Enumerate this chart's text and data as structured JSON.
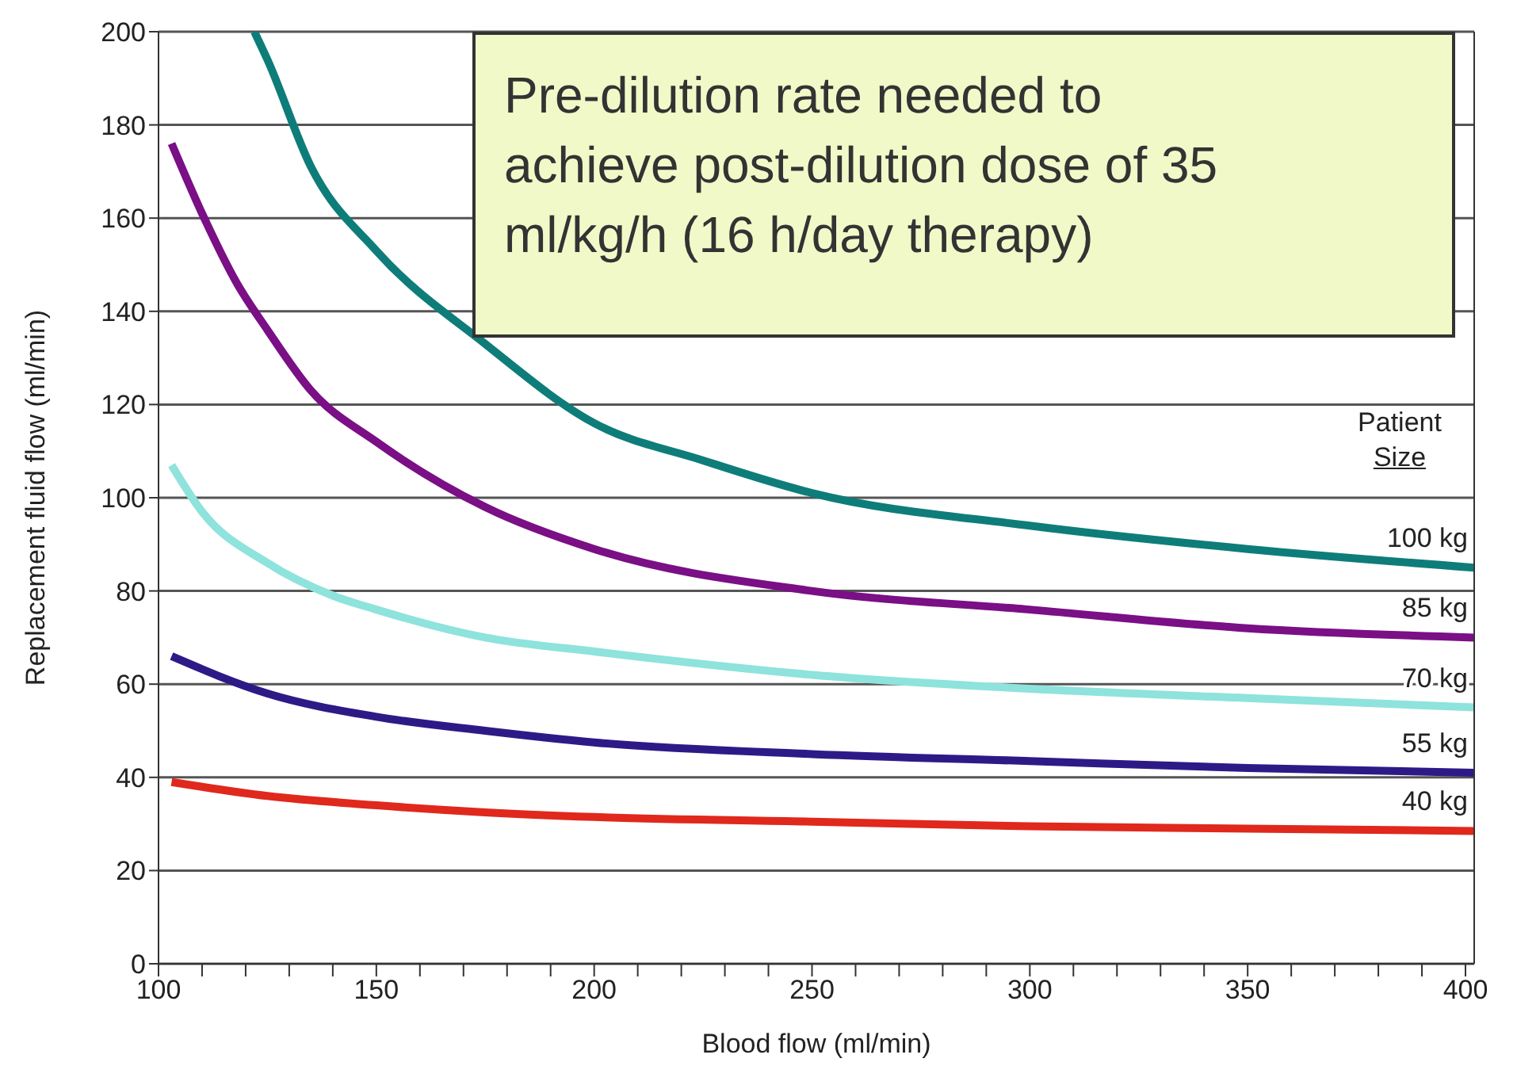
{
  "chart_data": {
    "type": "line",
    "xlabel": "Blood flow (ml/min)",
    "ylabel": "Replacement fluid flow (ml/min)",
    "legend_title": "Patient Size",
    "annotations": [
      "Pre-dilution rate needed to achieve post-dilution dose of 35 ml/kg/h (16 h/day therapy)"
    ],
    "xlim": [
      100,
      402
    ],
    "ylim": [
      0,
      200
    ],
    "xticks": [
      100,
      {
        "value": 110,
        "label": null
      },
      {
        "value": 120,
        "label": null
      },
      {
        "value": 130,
        "label": null
      },
      {
        "value": 140,
        "label": null
      },
      150,
      {
        "value": 160,
        "label": null
      },
      {
        "value": 170,
        "label": null
      },
      {
        "value": 180,
        "label": null
      },
      {
        "value": 190,
        "label": null
      },
      200,
      {
        "value": 210,
        "label": null
      },
      {
        "value": 220,
        "label": null
      },
      {
        "value": 230,
        "label": null
      },
      {
        "value": 240,
        "label": null
      },
      250,
      {
        "value": 260,
        "label": null
      },
      {
        "value": 270,
        "label": null
      },
      {
        "value": 280,
        "label": null
      },
      {
        "value": 290,
        "label": null
      },
      300,
      {
        "value": 310,
        "label": null
      },
      {
        "value": 320,
        "label": null
      },
      {
        "value": 330,
        "label": null
      },
      {
        "value": 340,
        "label": null
      },
      350,
      {
        "value": 360,
        "label": null
      },
      {
        "value": 370,
        "label": null
      },
      {
        "value": 380,
        "label": null
      },
      {
        "value": 390,
        "label": null
      },
      400
    ],
    "yticks": [
      0,
      20,
      40,
      60,
      80,
      100,
      120,
      140,
      160,
      180,
      200
    ],
    "grid": "y",
    "marker": "none",
    "line_style": "solid",
    "series": [
      {
        "name": "100 kg",
        "color": "#0e7d7a",
        "x": [
          122,
          125,
          135,
          150,
          175,
          200,
          225,
          250,
          300,
          350,
          402
        ],
        "values": [
          200,
          194,
          171,
          153,
          133,
          116,
          108,
          101,
          94,
          89,
          85
        ]
      },
      {
        "name": "85 kg",
        "color": "#7a0f86",
        "x": [
          103,
          110,
          118,
          125,
          135,
          150,
          175,
          200,
          250,
          300,
          350,
          402
        ],
        "values": [
          176,
          161,
          146,
          136,
          123,
          112,
          98,
          89,
          80,
          76,
          72,
          70
        ]
      },
      {
        "name": "70 kg",
        "color": "#8ee3dc",
        "x": [
          103,
          110,
          125,
          140,
          150,
          175,
          200,
          250,
          300,
          350,
          402
        ],
        "values": [
          107,
          97,
          86,
          79,
          76,
          70,
          67,
          62,
          59,
          57,
          55
        ]
      },
      {
        "name": "55 kg",
        "color": "#2e1a87",
        "x": [
          103,
          125,
          150,
          175,
          200,
          250,
          300,
          350,
          402
        ],
        "values": [
          66,
          58,
          53,
          50,
          47.5,
          45,
          43.5,
          42,
          41
        ]
      },
      {
        "name": "40 kg",
        "color": "#e0281c",
        "x": [
          103,
          125,
          150,
          175,
          200,
          250,
          300,
          350,
          402
        ],
        "values": [
          39,
          36,
          34,
          32.5,
          31.5,
          30.5,
          29.5,
          29,
          28.5
        ]
      }
    ]
  }
}
